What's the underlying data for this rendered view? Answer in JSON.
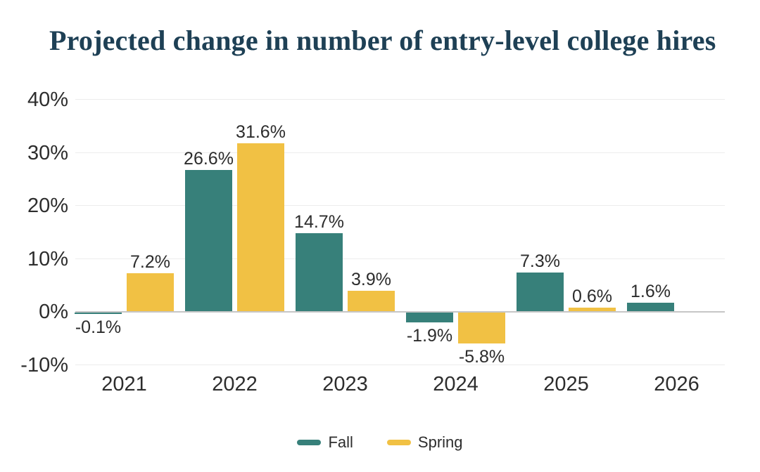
{
  "title": {
    "text": "Projected change in number of entry-level college hires",
    "color": "#1e4055"
  },
  "chart_data": {
    "type": "bar",
    "title": "Projected change in number of entry-level college hires",
    "categories": [
      "2021",
      "2022",
      "2023",
      "2024",
      "2025",
      "2026"
    ],
    "series": [
      {
        "name": "Fall",
        "color": "#37807a",
        "values": [
          -0.1,
          26.6,
          14.7,
          -1.9,
          7.3,
          1.6
        ],
        "labels": [
          "-0.1%",
          "26.6%",
          "14.7%",
          "-1.9%",
          "7.3%",
          "1.6%"
        ]
      },
      {
        "name": "Spring",
        "color": "#f1c144",
        "values": [
          7.2,
          31.6,
          3.9,
          -5.8,
          0.6,
          null
        ],
        "labels": [
          "7.2%",
          "31.6%",
          "3.9%",
          "-5.8%",
          "0.6%",
          null
        ]
      }
    ],
    "xlabel": "",
    "ylabel": "",
    "unit": "percent",
    "yticks": [
      {
        "label": "40%",
        "value": 40
      },
      {
        "label": "30%",
        "value": 30
      },
      {
        "label": "20%",
        "value": 20
      },
      {
        "label": "10%",
        "value": 10
      },
      {
        "label": "0%",
        "value": 0
      },
      {
        "label": "-10%",
        "value": -10
      }
    ],
    "ylim": [
      -10,
      40
    ],
    "grid": true,
    "legend_position": "bottom"
  }
}
